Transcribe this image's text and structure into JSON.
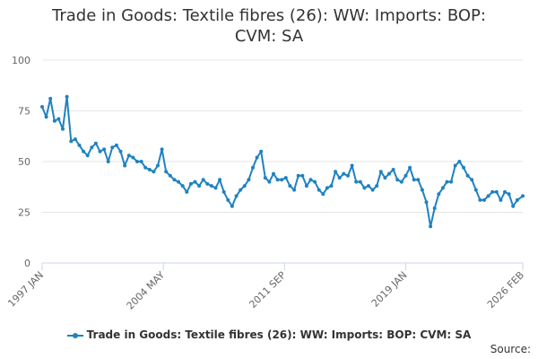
{
  "chart_data": {
    "type": "line",
    "title": "Trade in Goods: Textile fibres (26): WW: Imports: BOP: CVM: SA",
    "title_lines": [
      "Trade in Goods: Textile fibres (26): WW: Imports: BOP:",
      "CVM: SA"
    ],
    "xlabel": "",
    "ylabel": "",
    "ylim": [
      0,
      100
    ],
    "yticks": [
      "0",
      "25",
      "50",
      "75",
      "100"
    ],
    "xticks": [
      "1997 JAN",
      "2004 MAY",
      "2011 SEP",
      "2019 JAN",
      "2026 FEB"
    ],
    "x_start": "1997 JAN",
    "x_end": "2026 FEB",
    "grid": true,
    "legend": "bottom",
    "color": "#1f82c0",
    "series": [
      {
        "name": "Trade in Goods: Textile fibres (26): WW: Imports: BOP: CVM: SA",
        "x": [
          "1997-01",
          "1997-04",
          "1997-07",
          "1997-10",
          "1998-01",
          "1998-04",
          "1998-07",
          "1998-10",
          "1999-01",
          "1999-04",
          "1999-07",
          "1999-10",
          "2000-01",
          "2000-04",
          "2000-07",
          "2000-10",
          "2001-01",
          "2001-04",
          "2001-07",
          "2001-10",
          "2002-01",
          "2002-04",
          "2002-07",
          "2002-10",
          "2003-01",
          "2003-04",
          "2003-07",
          "2003-10",
          "2004-01",
          "2004-04",
          "2004-07",
          "2004-10",
          "2005-01",
          "2005-04",
          "2005-07",
          "2005-10",
          "2006-01",
          "2006-04",
          "2006-07",
          "2006-10",
          "2007-01",
          "2007-04",
          "2007-07",
          "2007-10",
          "2008-01",
          "2008-04",
          "2008-07",
          "2008-10",
          "2009-01",
          "2009-04",
          "2009-07",
          "2009-10",
          "2010-01",
          "2010-04",
          "2010-07",
          "2010-10",
          "2011-01",
          "2011-04",
          "2011-07",
          "2011-10",
          "2012-01",
          "2012-04",
          "2012-07",
          "2012-10",
          "2013-01",
          "2013-04",
          "2013-07",
          "2013-10",
          "2014-01",
          "2014-04",
          "2014-07",
          "2014-10",
          "2015-01",
          "2015-04",
          "2015-07",
          "2015-10",
          "2016-01",
          "2016-04",
          "2016-07",
          "2016-10",
          "2017-01",
          "2017-04",
          "2017-07",
          "2017-10",
          "2018-01",
          "2018-04",
          "2018-07",
          "2018-10",
          "2019-01",
          "2019-04",
          "2019-07",
          "2019-10",
          "2020-01",
          "2020-04",
          "2020-07",
          "2020-10",
          "2021-01",
          "2021-04",
          "2021-07",
          "2021-10",
          "2022-01",
          "2022-04",
          "2022-07",
          "2022-10",
          "2023-01",
          "2023-04",
          "2023-07",
          "2023-10",
          "2024-01",
          "2024-04",
          "2024-07",
          "2024-10",
          "2025-01",
          "2025-04",
          "2025-07",
          "2025-10",
          "2026-02"
        ],
        "values": [
          77,
          72,
          81,
          70,
          71,
          66,
          82,
          60,
          61,
          58,
          55,
          53,
          57,
          59,
          55,
          56,
          50,
          57,
          58,
          55,
          48,
          53,
          52,
          50,
          50,
          47,
          46,
          45,
          48,
          56,
          45,
          43,
          41,
          40,
          38,
          35,
          39,
          40,
          38,
          41,
          39,
          38,
          37,
          41,
          35,
          31,
          28,
          33,
          36,
          38,
          41,
          47,
          52,
          55,
          42,
          40,
          44,
          41,
          41,
          42,
          38,
          36,
          43,
          43,
          38,
          41,
          40,
          36,
          34,
          37,
          38,
          45,
          42,
          44,
          43,
          48,
          40,
          40,
          37,
          38,
          36,
          38,
          45,
          42,
          44,
          46,
          41,
          40,
          43,
          47,
          41,
          41,
          36,
          30,
          18,
          27,
          34,
          37,
          40,
          40,
          48,
          50,
          47,
          43,
          41,
          36,
          31,
          31,
          33,
          35,
          35,
          31,
          35,
          34,
          28,
          31,
          33
        ]
      }
    ]
  },
  "legend_label": "Trade in Goods: Textile fibres (26): WW: Imports: BOP: CVM: SA",
  "source_label": "Source:"
}
